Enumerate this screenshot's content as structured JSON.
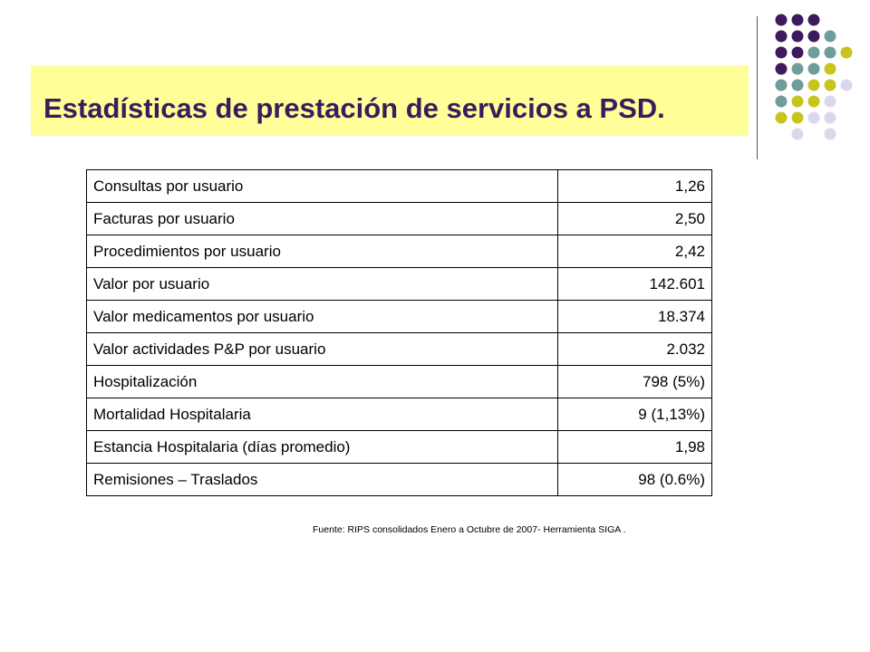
{
  "slide": {
    "title": "Estadísticas de prestación de servicios a PSD.",
    "source_note": "Fuente: RIPS consolidados Enero a Octubre de 2007-  Herramienta  SIGA  ."
  },
  "colors": {
    "title_band": "#ffff99",
    "title_text": "#3d1a5c",
    "dot_purple": "#3d1a5c",
    "dot_teal": "#6f9c9c",
    "dot_olive": "#c8c41e",
    "dot_lavender": "#d8d8ec"
  },
  "table": {
    "rows": [
      {
        "label": "Consultas por usuario",
        "value": "1,26"
      },
      {
        "label": "Facturas por usuario",
        "value": "2,50"
      },
      {
        "label": "Procedimientos por usuario",
        "value": "2,42"
      },
      {
        "label": "Valor por usuario",
        "value": "142.601"
      },
      {
        "label": "Valor medicamentos por usuario",
        "value": "18.374"
      },
      {
        "label": "Valor actividades P&P por usuario",
        "value": "2.032"
      },
      {
        "label": "Hospitalización",
        "value": "798 (5%)"
      },
      {
        "label": "Mortalidad Hospitalaria",
        "value": "9  (1,13%)"
      },
      {
        "label": "Estancia Hospitalaria (días promedio)",
        "value": "1,98"
      },
      {
        "label": "Remisiones – Traslados",
        "value": "98 (0.6%)"
      }
    ]
  }
}
